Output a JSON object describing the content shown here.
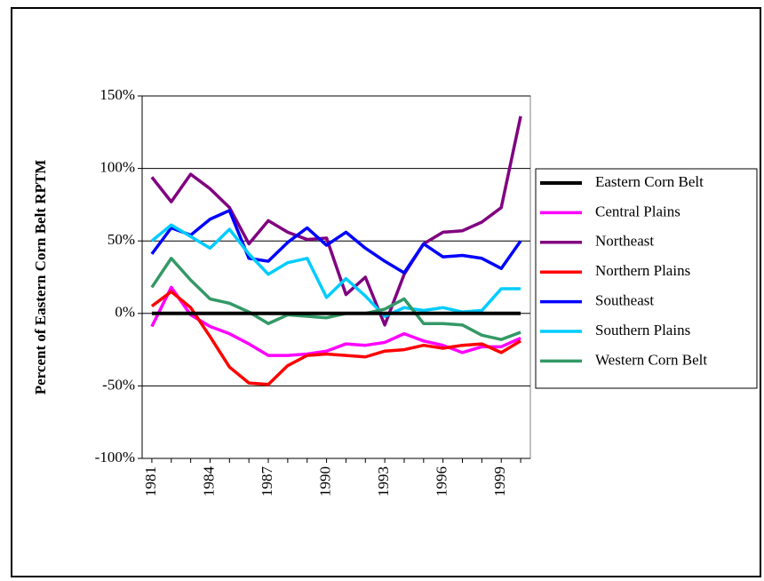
{
  "chart_data": {
    "type": "line",
    "y_label": "Percent of Eastern Corn Belt RPTM",
    "categories": [
      "1981",
      null,
      null,
      "1984",
      null,
      null,
      "1987",
      null,
      null,
      "1990",
      null,
      null,
      "1993",
      null,
      null,
      "1996",
      null,
      null,
      "1999",
      null
    ],
    "ylim": [
      -100,
      150
    ],
    "yticks": [
      {
        "value": -100,
        "label": "-100%"
      },
      {
        "value": -50,
        "label": "-50%"
      },
      {
        "value": 0,
        "label": "0%"
      },
      {
        "value": 50,
        "label": "50%"
      },
      {
        "value": 100,
        "label": "100%"
      },
      {
        "value": 150,
        "label": "150%"
      }
    ],
    "grid": true,
    "legend": "right",
    "series": [
      {
        "name": "Eastern Corn Belt",
        "color": "#000000",
        "values": [
          0,
          0,
          0,
          0,
          0,
          0,
          0,
          0,
          0,
          0,
          0,
          0,
          0,
          0,
          0,
          0,
          0,
          0,
          0,
          0
        ]
      },
      {
        "name": "Central Plains",
        "color": "#ff00ff",
        "values": [
          -9,
          18,
          -1,
          -9,
          -14,
          -21,
          -29,
          -29,
          -28,
          -26,
          -21,
          -22,
          -20,
          -14,
          -19,
          -22,
          -27,
          -23,
          -23,
          -17
        ]
      },
      {
        "name": "Northeast",
        "color": "#800080",
        "values": [
          94,
          77,
          96,
          86,
          73,
          48,
          64,
          56,
          51,
          52,
          13,
          25,
          -8,
          27,
          48,
          56,
          57,
          63,
          73,
          136
        ]
      },
      {
        "name": "Northern Plains",
        "color": "#ff0000",
        "values": [
          5,
          15,
          4,
          -16,
          -37,
          -48,
          -49,
          -36,
          -29,
          -28,
          -29,
          -30,
          -26,
          -25,
          -22,
          -24,
          -22,
          -21,
          -27,
          -19
        ]
      },
      {
        "name": "Southeast",
        "color": "#0000ff",
        "values": [
          41,
          59,
          54,
          65,
          71,
          38,
          36,
          49,
          59,
          47,
          56,
          45,
          36,
          28,
          48,
          39,
          40,
          38,
          31,
          50
        ]
      },
      {
        "name": "Southern Plains",
        "color": "#00ccff",
        "values": [
          50,
          61,
          53,
          45,
          58,
          41,
          27,
          35,
          38,
          11,
          24,
          12,
          -2,
          4,
          2,
          4,
          1,
          2,
          17,
          17
        ]
      },
      {
        "name": "Western Corn Belt",
        "color": "#339966",
        "values": [
          18,
          38,
          23,
          10,
          7,
          1,
          -7,
          -1,
          -2,
          -3,
          0,
          0,
          3,
          10,
          -7,
          -7,
          -8,
          -15,
          -18,
          -13
        ]
      }
    ]
  }
}
